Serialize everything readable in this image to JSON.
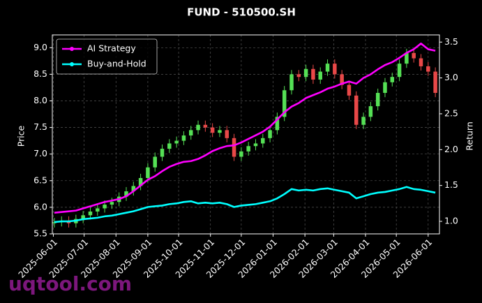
{
  "chart_data": {
    "type": "candlestick",
    "title": "FUND - 510500.SH",
    "ylabel": "Price",
    "y2label": "Return",
    "watermark": "uqtool.com",
    "x": [
      "2025-06-02",
      "2025-06-09",
      "2025-06-16",
      "2025-06-23",
      "2025-06-30",
      "2025-07-07",
      "2025-07-14",
      "2025-07-21",
      "2025-07-28",
      "2025-08-04",
      "2025-08-11",
      "2025-08-18",
      "2025-08-25",
      "2025-09-01",
      "2025-09-08",
      "2025-09-15",
      "2025-09-22",
      "2025-09-29",
      "2025-10-06",
      "2025-10-13",
      "2025-10-20",
      "2025-10-27",
      "2025-11-03",
      "2025-11-10",
      "2025-11-17",
      "2025-11-24",
      "2025-12-01",
      "2025-12-08",
      "2025-12-15",
      "2025-12-22",
      "2025-12-29",
      "2026-01-05",
      "2026-01-12",
      "2026-01-19",
      "2026-01-26",
      "2026-02-02",
      "2026-02-09",
      "2026-02-16",
      "2026-02-23",
      "2026-03-02",
      "2026-03-09",
      "2026-03-16",
      "2026-03-23",
      "2026-03-30",
      "2026-04-06",
      "2026-04-13",
      "2026-04-20",
      "2026-04-27",
      "2026-05-04",
      "2026-05-11",
      "2026-05-18",
      "2026-05-25",
      "2026-06-01",
      "2026-06-08"
    ],
    "open": [
      5.7,
      5.72,
      5.75,
      5.7,
      5.78,
      5.85,
      5.92,
      5.98,
      6.05,
      6.1,
      6.2,
      6.3,
      6.4,
      6.55,
      6.75,
      6.95,
      7.1,
      7.2,
      7.25,
      7.35,
      7.45,
      7.55,
      7.5,
      7.4,
      7.45,
      7.3,
      6.95,
      7.05,
      7.15,
      7.2,
      7.3,
      7.45,
      7.7,
      8.2,
      8.5,
      8.45,
      8.6,
      8.4,
      8.55,
      8.7,
      8.5,
      8.3,
      8.1,
      7.55,
      7.7,
      7.9,
      8.15,
      8.35,
      8.45,
      8.7,
      8.9,
      8.8,
      8.65,
      8.55
    ],
    "high": [
      5.8,
      5.83,
      5.83,
      5.86,
      5.93,
      6.0,
      6.06,
      6.13,
      6.18,
      6.28,
      6.38,
      6.48,
      6.63,
      6.83,
      7.03,
      7.18,
      7.28,
      7.33,
      7.43,
      7.53,
      7.63,
      7.63,
      7.58,
      7.53,
      7.53,
      7.38,
      7.13,
      7.23,
      7.28,
      7.38,
      7.53,
      7.78,
      8.28,
      8.58,
      8.58,
      8.68,
      8.68,
      8.63,
      8.78,
      8.78,
      8.58,
      8.38,
      8.18,
      7.78,
      7.98,
      8.23,
      8.43,
      8.53,
      8.78,
      8.98,
      8.98,
      8.88,
      8.73,
      8.63
    ],
    "low": [
      5.62,
      5.64,
      5.62,
      5.62,
      5.7,
      5.77,
      5.84,
      5.9,
      5.97,
      6.02,
      6.12,
      6.22,
      6.32,
      6.47,
      6.67,
      6.87,
      7.02,
      7.12,
      7.17,
      7.27,
      7.37,
      7.42,
      7.32,
      7.32,
      7.22,
      6.87,
      6.87,
      6.97,
      7.07,
      7.12,
      7.22,
      7.37,
      7.62,
      8.12,
      8.37,
      8.37,
      8.32,
      8.32,
      8.47,
      8.42,
      8.22,
      8.02,
      7.47,
      7.47,
      7.62,
      7.82,
      8.07,
      8.27,
      8.37,
      8.62,
      8.72,
      8.57,
      8.47,
      8.07
    ],
    "close": [
      5.72,
      5.75,
      5.7,
      5.78,
      5.85,
      5.92,
      5.98,
      6.05,
      6.1,
      6.2,
      6.3,
      6.4,
      6.55,
      6.75,
      6.95,
      7.1,
      7.2,
      7.25,
      7.35,
      7.45,
      7.55,
      7.5,
      7.4,
      7.45,
      7.3,
      6.95,
      7.05,
      7.15,
      7.2,
      7.3,
      7.45,
      7.7,
      8.2,
      8.5,
      8.45,
      8.6,
      8.4,
      8.55,
      8.7,
      8.5,
      8.3,
      8.1,
      7.55,
      7.7,
      7.9,
      8.15,
      8.35,
      8.45,
      8.7,
      8.9,
      8.8,
      8.65,
      8.55,
      8.15
    ],
    "up_color": "#55e055",
    "down_color": "#e84848",
    "series": [
      {
        "name": "AI Strategy",
        "color": "#ff00ff",
        "axis": "y2",
        "values": [
          1.12,
          1.13,
          1.14,
          1.15,
          1.18,
          1.21,
          1.24,
          1.27,
          1.29,
          1.31,
          1.35,
          1.42,
          1.5,
          1.58,
          1.63,
          1.7,
          1.76,
          1.8,
          1.83,
          1.84,
          1.87,
          1.92,
          1.98,
          2.02,
          2.05,
          2.06,
          2.1,
          2.15,
          2.2,
          2.25,
          2.32,
          2.42,
          2.52,
          2.6,
          2.65,
          2.72,
          2.76,
          2.8,
          2.85,
          2.88,
          2.92,
          2.95,
          2.92,
          3.0,
          3.05,
          3.12,
          3.18,
          3.22,
          3.28,
          3.35,
          3.4,
          3.48,
          3.4,
          3.38
        ]
      },
      {
        "name": "Buy-and-Hold",
        "color": "#00ffff",
        "axis": "y2",
        "values": [
          0.99,
          1.0,
          1.0,
          1.01,
          1.03,
          1.04,
          1.05,
          1.07,
          1.08,
          1.1,
          1.12,
          1.14,
          1.17,
          1.2,
          1.21,
          1.22,
          1.24,
          1.25,
          1.27,
          1.28,
          1.25,
          1.26,
          1.25,
          1.26,
          1.24,
          1.2,
          1.22,
          1.23,
          1.24,
          1.26,
          1.28,
          1.32,
          1.38,
          1.45,
          1.43,
          1.44,
          1.43,
          1.45,
          1.46,
          1.44,
          1.42,
          1.4,
          1.32,
          1.35,
          1.38,
          1.4,
          1.41,
          1.43,
          1.45,
          1.48,
          1.45,
          1.44,
          1.42,
          1.4
        ]
      }
    ],
    "xlim": [
      "2025-05-31",
      "2026-06-12"
    ],
    "xticks": [
      "2025-06-01",
      "2025-07-01",
      "2025-08-01",
      "2025-09-01",
      "2025-10-01",
      "2025-11-01",
      "2025-12-01",
      "2026-01-01",
      "2026-02-01",
      "2026-03-01",
      "2026-04-01",
      "2026-05-01",
      "2026-06-01"
    ],
    "ylim": [
      5.5,
      9.24
    ],
    "yticks": [
      5.5,
      {
        "value": 6,
        "label": "6.0"
      },
      6.5,
      {
        "value": 7,
        "label": "7.0"
      },
      7.5,
      {
        "value": 8,
        "label": "8.0"
      },
      8.5,
      {
        "value": 9,
        "label": "9.0"
      }
    ],
    "y2lim": [
      0.825,
      3.6
    ],
    "y2ticks": [
      {
        "value": 1,
        "label": "1.0"
      },
      1.5,
      {
        "value": 2,
        "label": "2.0"
      },
      2.5,
      {
        "value": 3,
        "label": "3.0"
      },
      3.5
    ],
    "grid": true,
    "legend": "upper left"
  }
}
